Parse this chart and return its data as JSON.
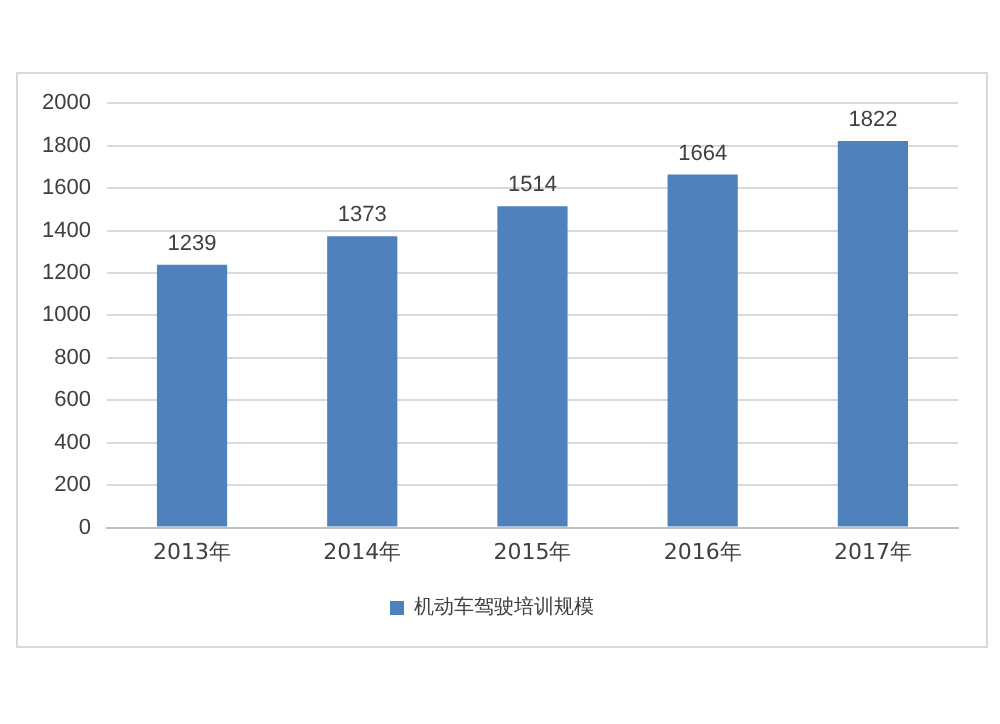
{
  "chart_data": {
    "type": "bar",
    "categories": [
      "2013年",
      "2014年",
      "2015年",
      "2016年",
      "2017年"
    ],
    "series": [
      {
        "name": "机动车驾驶培训规模",
        "color": "#4f81bd",
        "values": [
          1239,
          1373,
          1514,
          1664,
          1822
        ]
      }
    ],
    "ylim": [
      0,
      2000
    ],
    "yticks": [
      0,
      200,
      400,
      600,
      800,
      1000,
      1200,
      1400,
      1600,
      1800,
      2000
    ],
    "grid": "y",
    "legend": "bottom",
    "data_labels": true
  }
}
